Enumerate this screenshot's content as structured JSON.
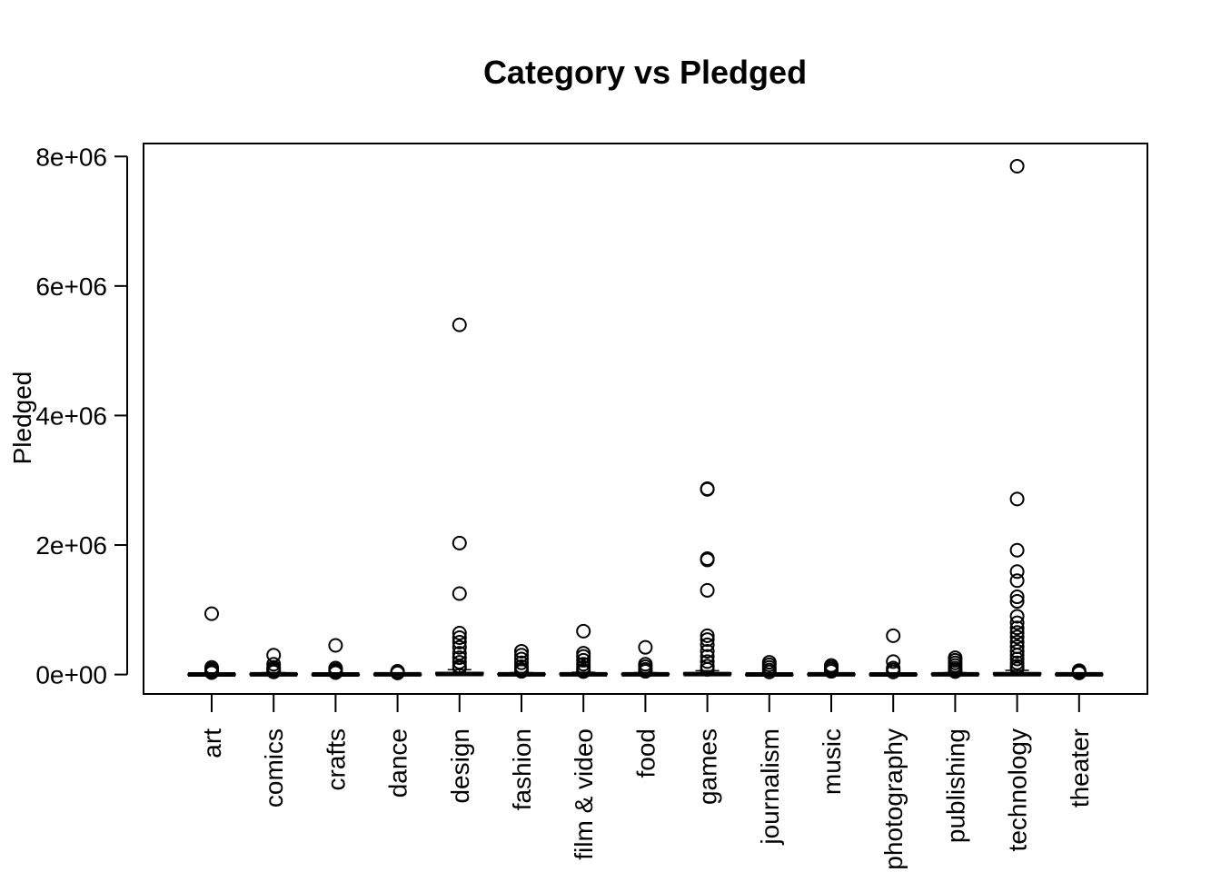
{
  "chart_data": {
    "type": "box",
    "title": "Category vs Pledged",
    "xlabel": "",
    "ylabel": "Pledged",
    "ylim": [
      -300000,
      8200000
    ],
    "y_ticks": [
      {
        "value": 0,
        "label": "0e+00"
      },
      {
        "value": 2000000,
        "label": "2e+06"
      },
      {
        "value": 4000000,
        "label": "4e+06"
      },
      {
        "value": 6000000,
        "label": "6e+06"
      },
      {
        "value": 8000000,
        "label": "8e+06"
      }
    ],
    "grid": false,
    "categories": [
      "art",
      "comics",
      "crafts",
      "dance",
      "design",
      "fashion",
      "film & video",
      "food",
      "games",
      "journalism",
      "music",
      "photography",
      "publishing",
      "technology",
      "theater"
    ],
    "boxes": [
      {
        "category": "art",
        "q1": 0,
        "median": 2000,
        "q3": 8000,
        "whisker_high": 20000,
        "outliers": [
          940000,
          110000,
          80000,
          60000,
          45000,
          30000
        ]
      },
      {
        "category": "comics",
        "q1": 500,
        "median": 4000,
        "q3": 12000,
        "whisker_high": 30000,
        "outliers": [
          300000,
          160000,
          110000,
          80000,
          60000,
          40000
        ]
      },
      {
        "category": "crafts",
        "q1": 0,
        "median": 1500,
        "q3": 6000,
        "whisker_high": 15000,
        "outliers": [
          450000,
          100000,
          70000,
          50000,
          30000
        ]
      },
      {
        "category": "dance",
        "q1": 500,
        "median": 3000,
        "q3": 8000,
        "whisker_high": 18000,
        "outliers": [
          50000,
          35000,
          25000
        ]
      },
      {
        "category": "design",
        "q1": 1000,
        "median": 8000,
        "q3": 30000,
        "whisker_high": 75000,
        "outliers": [
          5400000,
          2030000,
          1250000,
          640000,
          570000,
          500000,
          420000,
          330000,
          260000,
          190000,
          130000,
          100000
        ]
      },
      {
        "category": "fashion",
        "q1": 0,
        "median": 3000,
        "q3": 12000,
        "whisker_high": 30000,
        "outliers": [
          360000,
          300000,
          240000,
          180000,
          120000,
          80000,
          50000
        ]
      },
      {
        "category": "film & video",
        "q1": 500,
        "median": 4000,
        "q3": 15000,
        "whisker_high": 35000,
        "outliers": [
          670000,
          330000,
          280000,
          220000,
          160000,
          110000,
          70000,
          45000
        ]
      },
      {
        "category": "food",
        "q1": 500,
        "median": 4000,
        "q3": 12000,
        "whisker_high": 30000,
        "outliers": [
          420000,
          160000,
          120000,
          80000,
          50000
        ]
      },
      {
        "category": "games",
        "q1": 1000,
        "median": 6000,
        "q3": 25000,
        "whisker_high": 60000,
        "outliers": [
          2870000,
          2860000,
          1790000,
          1770000,
          1300000,
          600000,
          540000,
          460000,
          360000,
          280000,
          200000,
          130000,
          80000
        ]
      },
      {
        "category": "journalism",
        "q1": 0,
        "median": 1500,
        "q3": 6000,
        "whisker_high": 15000,
        "outliers": [
          190000,
          150000,
          110000,
          70000,
          40000
        ]
      },
      {
        "category": "music",
        "q1": 500,
        "median": 3500,
        "q3": 10000,
        "whisker_high": 25000,
        "outliers": [
          140000,
          110000,
          80000,
          50000
        ]
      },
      {
        "category": "photography",
        "q1": 0,
        "median": 2000,
        "q3": 8000,
        "whisker_high": 20000,
        "outliers": [
          600000,
          200000,
          100000,
          70000,
          40000
        ]
      },
      {
        "category": "publishing",
        "q1": 500,
        "median": 4000,
        "q3": 12000,
        "whisker_high": 30000,
        "outliers": [
          260000,
          220000,
          180000,
          140000,
          100000,
          70000,
          45000
        ]
      },
      {
        "category": "technology",
        "q1": 500,
        "median": 5000,
        "q3": 25000,
        "whisker_high": 65000,
        "outliers": [
          7850000,
          2710000,
          1920000,
          1590000,
          1450000,
          1200000,
          1130000,
          900000,
          800000,
          720000,
          650000,
          580000,
          500000,
          430000,
          360000,
          300000,
          240000,
          180000,
          130000,
          90000
        ]
      },
      {
        "category": "theater",
        "q1": 500,
        "median": 3000,
        "q3": 9000,
        "whisker_high": 20000,
        "outliers": [
          60000,
          40000,
          25000
        ]
      }
    ]
  }
}
